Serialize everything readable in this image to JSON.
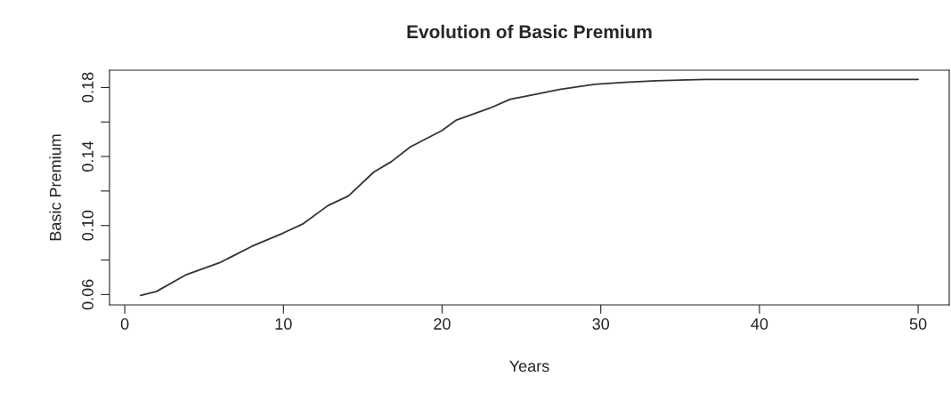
{
  "chart_data": {
    "type": "line",
    "title": "Evolution of Basic Premium",
    "xlabel": "Years",
    "ylabel": "Basic Premium",
    "series": [
      {
        "color": "#333333",
        "x": [
          1,
          2,
          3.9,
          6,
          8,
          10,
          11.2,
          12.8,
          14.1,
          15.7,
          16.8,
          18,
          20,
          20.9,
          23,
          24.3,
          25.6,
          27.4,
          29.6,
          31.5,
          33.5,
          36.6,
          50
        ],
        "values": [
          0.0595,
          0.0618,
          0.0716,
          0.0785,
          0.0879,
          0.0957,
          0.1008,
          0.1115,
          0.1172,
          0.131,
          0.137,
          0.1456,
          0.1551,
          0.1611,
          0.168,
          0.1732,
          0.1755,
          0.1789,
          0.1818,
          0.183,
          0.1839,
          0.1847,
          0.1847
        ]
      }
    ],
    "xlim": [
      -0.96,
      51.96
    ],
    "xticks": [
      0,
      10,
      20,
      30,
      40,
      50
    ],
    "ylim": [
      0.054,
      0.19
    ],
    "yticks": [
      {
        "value": 0.06,
        "label": "0.06"
      },
      {
        "value": 0.08,
        "label": null
      },
      {
        "value": 0.1,
        "label": "0.10"
      },
      {
        "value": 0.12,
        "label": null
      },
      {
        "value": 0.14,
        "label": "0.14"
      },
      {
        "value": 0.16,
        "label": null
      },
      {
        "value": 0.18,
        "label": "0.18"
      }
    ],
    "grid": false,
    "legend": false,
    "marker": "none",
    "line_style": "solid"
  }
}
